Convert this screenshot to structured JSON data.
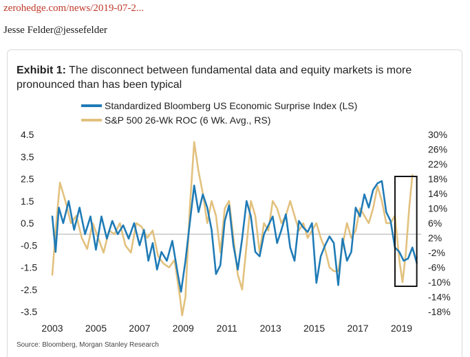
{
  "post": {
    "link": "zerohedge.com/news/2019-07-2...",
    "author": "Jesse Felder@jessefelder"
  },
  "chart_data": {
    "type": "line",
    "title_label": "Exhibit 1:",
    "title": "The disconnect between fundamental data and equity markets is more pronounced than has been typical",
    "source": "Source: Bloomberg, Morgan Stanley Research",
    "x_ticks": [
      "2003",
      "2005",
      "2007",
      "2009",
      "2011",
      "2013",
      "2015",
      "2017",
      "2019"
    ],
    "xlim": [
      2003,
      2019.9
    ],
    "y_left_ticks": [
      "4.5",
      "3.5",
      "2.5",
      "1.5",
      "0.5",
      "-0.5",
      "-1.5",
      "-2.5",
      "-3.5"
    ],
    "y_right_ticks": [
      "30%",
      "26%",
      "22%",
      "18%",
      "14%",
      "10%",
      "6%",
      "2%",
      "-2%",
      "-6%",
      "-10%",
      "-14%",
      "-18%"
    ],
    "ylim_left": [
      -3.5,
      4.5
    ],
    "ylim_right": [
      -18,
      30
    ],
    "reference_line_left": 0,
    "legend_position": "top-center",
    "colors": {
      "surprise": "#1f7bb6",
      "spx": "#e2c17e",
      "text": "#1f1f1f",
      "box": "#111111",
      "zero": "#aaaaaa"
    },
    "highlight_box_x": [
      2018.7,
      2019.7
    ],
    "series": [
      {
        "name": "Standardized Bloomberg US Economic Surprise Index (LS)",
        "axis": "left",
        "x": [
          2003.0,
          2003.15,
          2003.3,
          2003.5,
          2003.75,
          2004.0,
          2004.25,
          2004.5,
          2004.75,
          2005.0,
          2005.25,
          2005.5,
          2005.75,
          2006.0,
          2006.25,
          2006.5,
          2006.75,
          2007.0,
          2007.2,
          2007.4,
          2007.6,
          2007.8,
          2008.0,
          2008.25,
          2008.5,
          2008.75,
          2008.9,
          2009.1,
          2009.3,
          2009.5,
          2009.7,
          2009.9,
          2010.1,
          2010.3,
          2010.5,
          2010.7,
          2010.9,
          2011.1,
          2011.3,
          2011.5,
          2011.7,
          2011.9,
          2012.1,
          2012.3,
          2012.5,
          2012.7,
          2012.9,
          2013.1,
          2013.3,
          2013.5,
          2013.7,
          2013.9,
          2014.1,
          2014.3,
          2014.5,
          2014.7,
          2014.9,
          2015.1,
          2015.3,
          2015.5,
          2015.7,
          2015.9,
          2016.1,
          2016.3,
          2016.5,
          2016.7,
          2016.9,
          2017.1,
          2017.3,
          2017.5,
          2017.7,
          2017.9,
          2018.1,
          2018.3,
          2018.5,
          2018.7,
          2018.9,
          2019.1,
          2019.3,
          2019.5,
          2019.7
        ],
        "y": [
          0.8,
          -0.8,
          1.2,
          0.5,
          1.5,
          0.2,
          1.2,
          0.0,
          0.8,
          -0.7,
          0.8,
          -0.2,
          0.6,
          0.0,
          0.4,
          -0.2,
          0.5,
          -0.5,
          0.2,
          -1.2,
          -0.4,
          -1.6,
          -0.8,
          -1.2,
          -0.3,
          -1.8,
          -2.6,
          -1.2,
          0.5,
          2.2,
          1.0,
          1.8,
          1.2,
          0.2,
          -1.8,
          -1.4,
          0.6,
          1.3,
          -0.5,
          -1.6,
          -0.2,
          1.5,
          0.8,
          -0.8,
          -1.0,
          0.0,
          0.4,
          0.8,
          -0.4,
          0.2,
          0.9,
          -0.6,
          -1.2,
          0.6,
          0.3,
          0.1,
          0.5,
          -2.2,
          -1.0,
          -0.5,
          -0.1,
          -0.4,
          -2.3,
          -0.2,
          -1.2,
          -0.8,
          1.2,
          0.8,
          1.8,
          1.2,
          2.0,
          2.3,
          2.4,
          1.0,
          0.6,
          -0.6,
          -0.8,
          -1.2,
          -1.1,
          -0.6,
          -1.3
        ]
      },
      {
        "name": "S&P 500 26-Wk ROC (6 Wk. Avg., RS)",
        "axis": "right",
        "x": [
          2003.0,
          2003.15,
          2003.35,
          2003.6,
          2003.85,
          2004.1,
          2004.35,
          2004.6,
          2004.85,
          2005.1,
          2005.35,
          2005.6,
          2005.85,
          2006.1,
          2006.35,
          2006.6,
          2006.85,
          2007.1,
          2007.35,
          2007.6,
          2007.85,
          2008.1,
          2008.35,
          2008.6,
          2008.85,
          2008.95,
          2009.1,
          2009.3,
          2009.5,
          2009.7,
          2009.9,
          2010.1,
          2010.3,
          2010.5,
          2010.7,
          2010.9,
          2011.1,
          2011.3,
          2011.5,
          2011.7,
          2011.9,
          2012.1,
          2012.3,
          2012.5,
          2012.7,
          2012.9,
          2013.1,
          2013.3,
          2013.5,
          2013.7,
          2013.9,
          2014.1,
          2014.3,
          2014.5,
          2014.7,
          2014.9,
          2015.1,
          2015.3,
          2015.5,
          2015.7,
          2015.9,
          2016.1,
          2016.3,
          2016.5,
          2016.7,
          2016.9,
          2017.1,
          2017.3,
          2017.5,
          2017.7,
          2017.9,
          2018.1,
          2018.3,
          2018.5,
          2018.7,
          2018.9,
          2019.05,
          2019.2,
          2019.35,
          2019.5
        ],
        "y": [
          -8.0,
          4.0,
          17.0,
          12.0,
          6.0,
          8.0,
          2.0,
          -1.0,
          6.0,
          2.0,
          -2.0,
          4.0,
          3.0,
          6.0,
          0.0,
          -2.0,
          6.0,
          5.0,
          2.0,
          4.0,
          -3.0,
          -5.0,
          -6.0,
          -4.0,
          -14.0,
          -19.0,
          -14.0,
          10.0,
          28.0,
          20.0,
          14.0,
          6.0,
          12.0,
          8.0,
          -2.0,
          10.0,
          12.0,
          2.0,
          -8.0,
          -12.0,
          0.0,
          12.0,
          8.0,
          -2.0,
          6.0,
          4.0,
          12.0,
          10.0,
          6.0,
          8.0,
          12.0,
          8.0,
          4.0,
          6.0,
          2.0,
          4.0,
          6.0,
          2.0,
          -1.0,
          -6.0,
          -7.0,
          -7.0,
          0.0,
          6.0,
          2.0,
          4.0,
          10.0,
          8.0,
          6.0,
          10.0,
          16.0,
          12.0,
          6.0,
          6.0,
          8.0,
          -4.0,
          -10.0,
          -2.0,
          10.0,
          19.0
        ]
      }
    ]
  }
}
